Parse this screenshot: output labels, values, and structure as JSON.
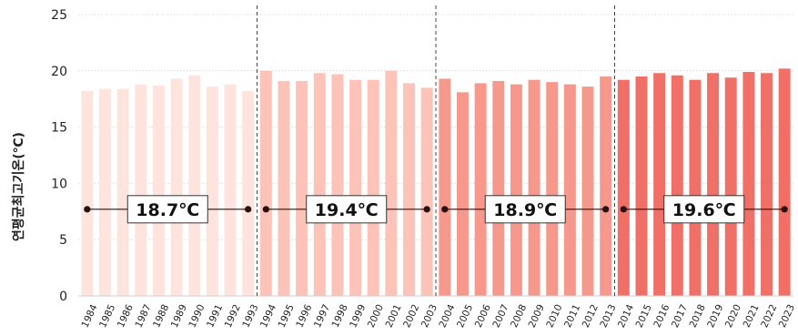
{
  "chart_data": {
    "type": "bar",
    "ylabel": "연평균최고기온(℃)",
    "ylim": [
      0,
      25
    ],
    "yticks": [
      0,
      5,
      10,
      15,
      20,
      25
    ],
    "grid": true,
    "categories": [
      "1984",
      "1985",
      "1986",
      "1987",
      "1988",
      "1989",
      "1990",
      "1991",
      "1992",
      "1993",
      "1994",
      "1995",
      "1996",
      "1997",
      "1998",
      "1999",
      "2000",
      "2001",
      "2002",
      "2003",
      "2004",
      "2005",
      "2006",
      "2007",
      "2008",
      "2009",
      "2010",
      "2011",
      "2012",
      "2013",
      "2014",
      "2015",
      "2016",
      "2017",
      "2018",
      "2019",
      "2020",
      "2021",
      "2022",
      "2023"
    ],
    "values": [
      18.2,
      18.4,
      18.4,
      18.8,
      18.7,
      19.3,
      19.6,
      18.6,
      18.8,
      18.2,
      20.0,
      19.1,
      19.1,
      19.8,
      19.7,
      19.2,
      19.2,
      20.0,
      18.9,
      18.5,
      19.3,
      18.1,
      18.9,
      19.1,
      18.8,
      19.2,
      19.0,
      18.8,
      18.6,
      19.5,
      19.2,
      19.5,
      19.8,
      19.6,
      19.2,
      19.8,
      19.4,
      19.9,
      19.8,
      20.2
    ],
    "periods": [
      {
        "start": "1984",
        "end": "1993",
        "mean": 18.7,
        "label": "18.7℃",
        "color": "#ffe4dd"
      },
      {
        "start": "1994",
        "end": "2003",
        "mean": 19.4,
        "label": "19.4℃",
        "color": "#fdc3b8"
      },
      {
        "start": "2004",
        "end": "2013",
        "mean": 18.9,
        "label": "18.9℃",
        "color": "#f6988c"
      },
      {
        "start": "2014",
        "end": "2023",
        "mean": 19.6,
        "label": "19.6℃",
        "color": "#f07068"
      }
    ],
    "mean_line_value": 7.7,
    "divider_color": "#444444",
    "marker_color": "#2b1010"
  }
}
